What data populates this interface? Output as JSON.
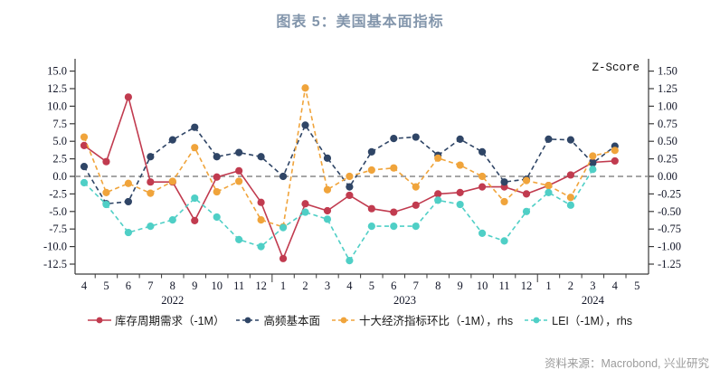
{
  "title": "图表 5：美国基本面指标",
  "source_note": "资料来源：Macrobond, 兴业研究",
  "chart_data": {
    "type": "line",
    "title": "图表 5：美国基本面指标",
    "grid": "off",
    "zero_line": true,
    "legend_position": "bottom",
    "x_axis": {
      "tick_labels": [
        "4",
        "5",
        "6",
        "7",
        "8",
        "9",
        "10",
        "11",
        "12",
        "1",
        "2",
        "3",
        "4",
        "5",
        "6",
        "7",
        "8",
        "9",
        "10",
        "11",
        "12",
        "1",
        "2",
        "3",
        "4",
        "5"
      ],
      "year_labels": [
        {
          "text": "2022",
          "month_index": 4
        },
        {
          "text": "2023",
          "month_index": 14.5
        },
        {
          "text": "2024",
          "month_index": 23
        }
      ]
    },
    "left_axis": {
      "min": -12.5,
      "max": 15.0,
      "step": 2.5,
      "tick_labels": [
        "15.0",
        "12.5",
        "10.0",
        "7.5",
        "5.0",
        "2.5",
        "0.0",
        "-2.5",
        "-5.0",
        "-7.5",
        "-10.0",
        "-12.5"
      ]
    },
    "right_axis": {
      "label": "Z-Score",
      "min": -1.25,
      "max": 1.5,
      "step": 0.25,
      "tick_labels": [
        "1.50",
        "1.25",
        "1.00",
        "0.75",
        "0.50",
        "0.25",
        "0.00",
        "-0.25",
        "-0.50",
        "-0.75",
        "-1.00",
        "-1.25"
      ]
    },
    "series": [
      {
        "legend_label": "库存周期需求（-1M）",
        "axis": "left",
        "color": "#c13b4f",
        "line_style": "solid",
        "values": [
          4.4,
          2.1,
          11.3,
          -0.8,
          -0.8,
          -6.3,
          -0.1,
          0.8,
          -3.7,
          -11.7,
          -3.9,
          -4.9,
          -2.7,
          -4.6,
          -5.1,
          -4.1,
          -2.5,
          -2.3,
          -1.5,
          -1.5,
          -2.5,
          -1.3,
          0.2,
          2.0,
          2.2,
          null
        ]
      },
      {
        "legend_label": "高频基本面",
        "axis": "left",
        "color": "#2f4566",
        "line_style": "dashed",
        "values": [
          1.4,
          -3.9,
          -3.6,
          2.8,
          5.2,
          7.0,
          2.8,
          3.4,
          2.8,
          0.0,
          7.3,
          2.6,
          -1.5,
          3.5,
          5.4,
          5.6,
          3.0,
          5.3,
          3.5,
          -0.8,
          -0.4,
          5.3,
          5.2,
          1.9,
          4.3,
          null
        ]
      },
      {
        "legend_label": "十大经济指标环比（-1M），rhs",
        "axis": "right",
        "color": "#f0a43b",
        "line_style": "dashed",
        "values": [
          0.56,
          -0.23,
          -0.1,
          -0.24,
          -0.07,
          0.41,
          -0.22,
          -0.07,
          -0.62,
          -0.72,
          1.26,
          -0.19,
          0.0,
          0.09,
          0.12,
          -0.15,
          0.26,
          0.16,
          0.0,
          -0.36,
          -0.06,
          -0.13,
          -0.3,
          0.29,
          0.37,
          null
        ]
      },
      {
        "legend_label": "LEI（-1M），rhs",
        "axis": "right",
        "color": "#4fcfc6",
        "line_style": "dashed",
        "values": [
          -0.09,
          -0.4,
          -0.8,
          -0.71,
          -0.62,
          -0.31,
          -0.58,
          -0.9,
          -1.0,
          -0.73,
          -0.51,
          -0.61,
          -1.2,
          -0.71,
          -0.71,
          -0.71,
          -0.34,
          -0.4,
          -0.81,
          -0.92,
          -0.5,
          -0.23,
          -0.41,
          0.1,
          null,
          null
        ]
      }
    ]
  }
}
